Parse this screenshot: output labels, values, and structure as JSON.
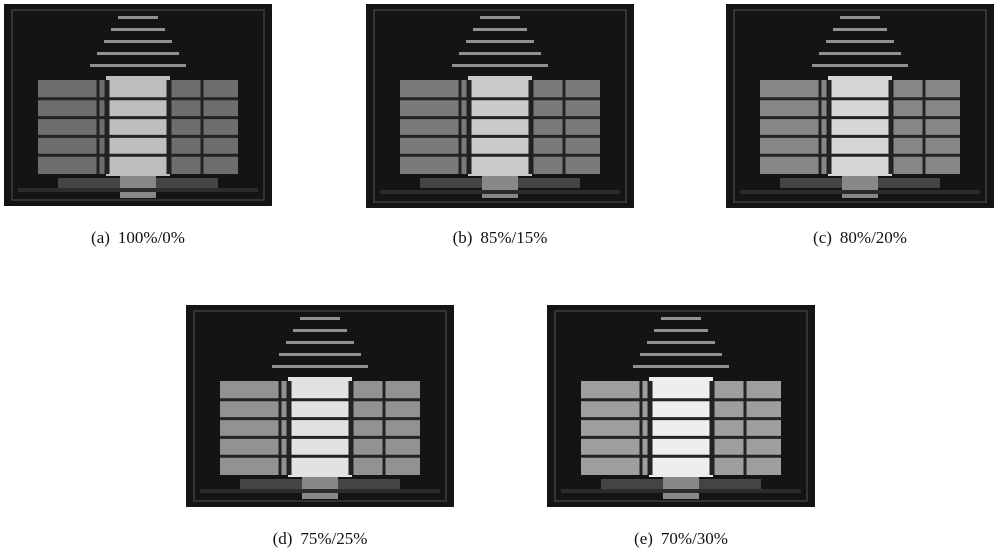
{
  "figures": [
    {
      "label": "(a)",
      "caption": "100%/0%"
    },
    {
      "label": "(b)",
      "caption": "85%/15%"
    },
    {
      "label": "(c)",
      "caption": "80%/20%"
    },
    {
      "label": "(d)",
      "caption": "75%/25%"
    },
    {
      "label": "(e)",
      "caption": "70%/30%"
    }
  ]
}
